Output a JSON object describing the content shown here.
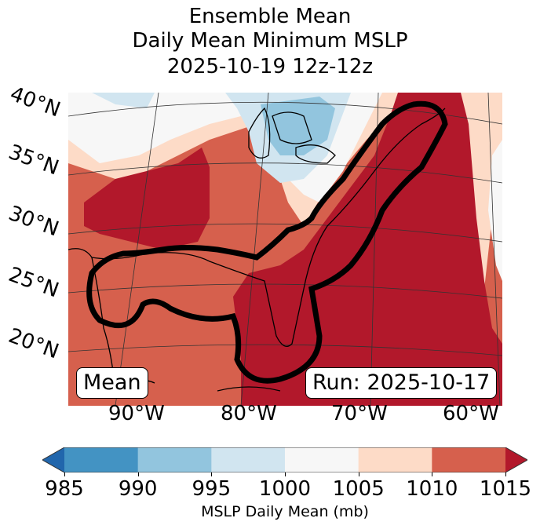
{
  "title": {
    "line1": "Ensemble Mean",
    "line2": "Daily Mean Minimum MSLP",
    "line3": "2025-10-19 12z-12z"
  },
  "map": {
    "lat_labels": [
      "40°N",
      "35°N",
      "30°N",
      "25°N",
      "20°N"
    ],
    "lon_labels": [
      "90°W",
      "80°W",
      "70°W",
      "60°W"
    ],
    "left_box": "Mean",
    "right_box": "Run: 2025-10-17",
    "features": [
      "Great Lakes low-pressure area (990-1000 mb)",
      "High pressure over Atlantic (>1015 mb)",
      "Bold black contour outlining Gulf coast and US East Coast region"
    ]
  },
  "colorbar": {
    "ticks": [
      "985",
      "990",
      "995",
      "1000",
      "1005",
      "1010",
      "1015"
    ],
    "label": "MSLP Daily Mean (mb)",
    "under_color": "#2166ac",
    "over_color": "#b2182b",
    "bins": [
      {
        "range": "985-990",
        "color": "#4393c3"
      },
      {
        "range": "990-995",
        "color": "#92c5de"
      },
      {
        "range": "995-1000",
        "color": "#d1e5f0"
      },
      {
        "range": "1000-1005",
        "color": "#f7f7f7"
      },
      {
        "range": "1005-1010",
        "color": "#fddbc7"
      },
      {
        "range": "1010-1015",
        "color": "#d6604d"
      }
    ]
  }
}
